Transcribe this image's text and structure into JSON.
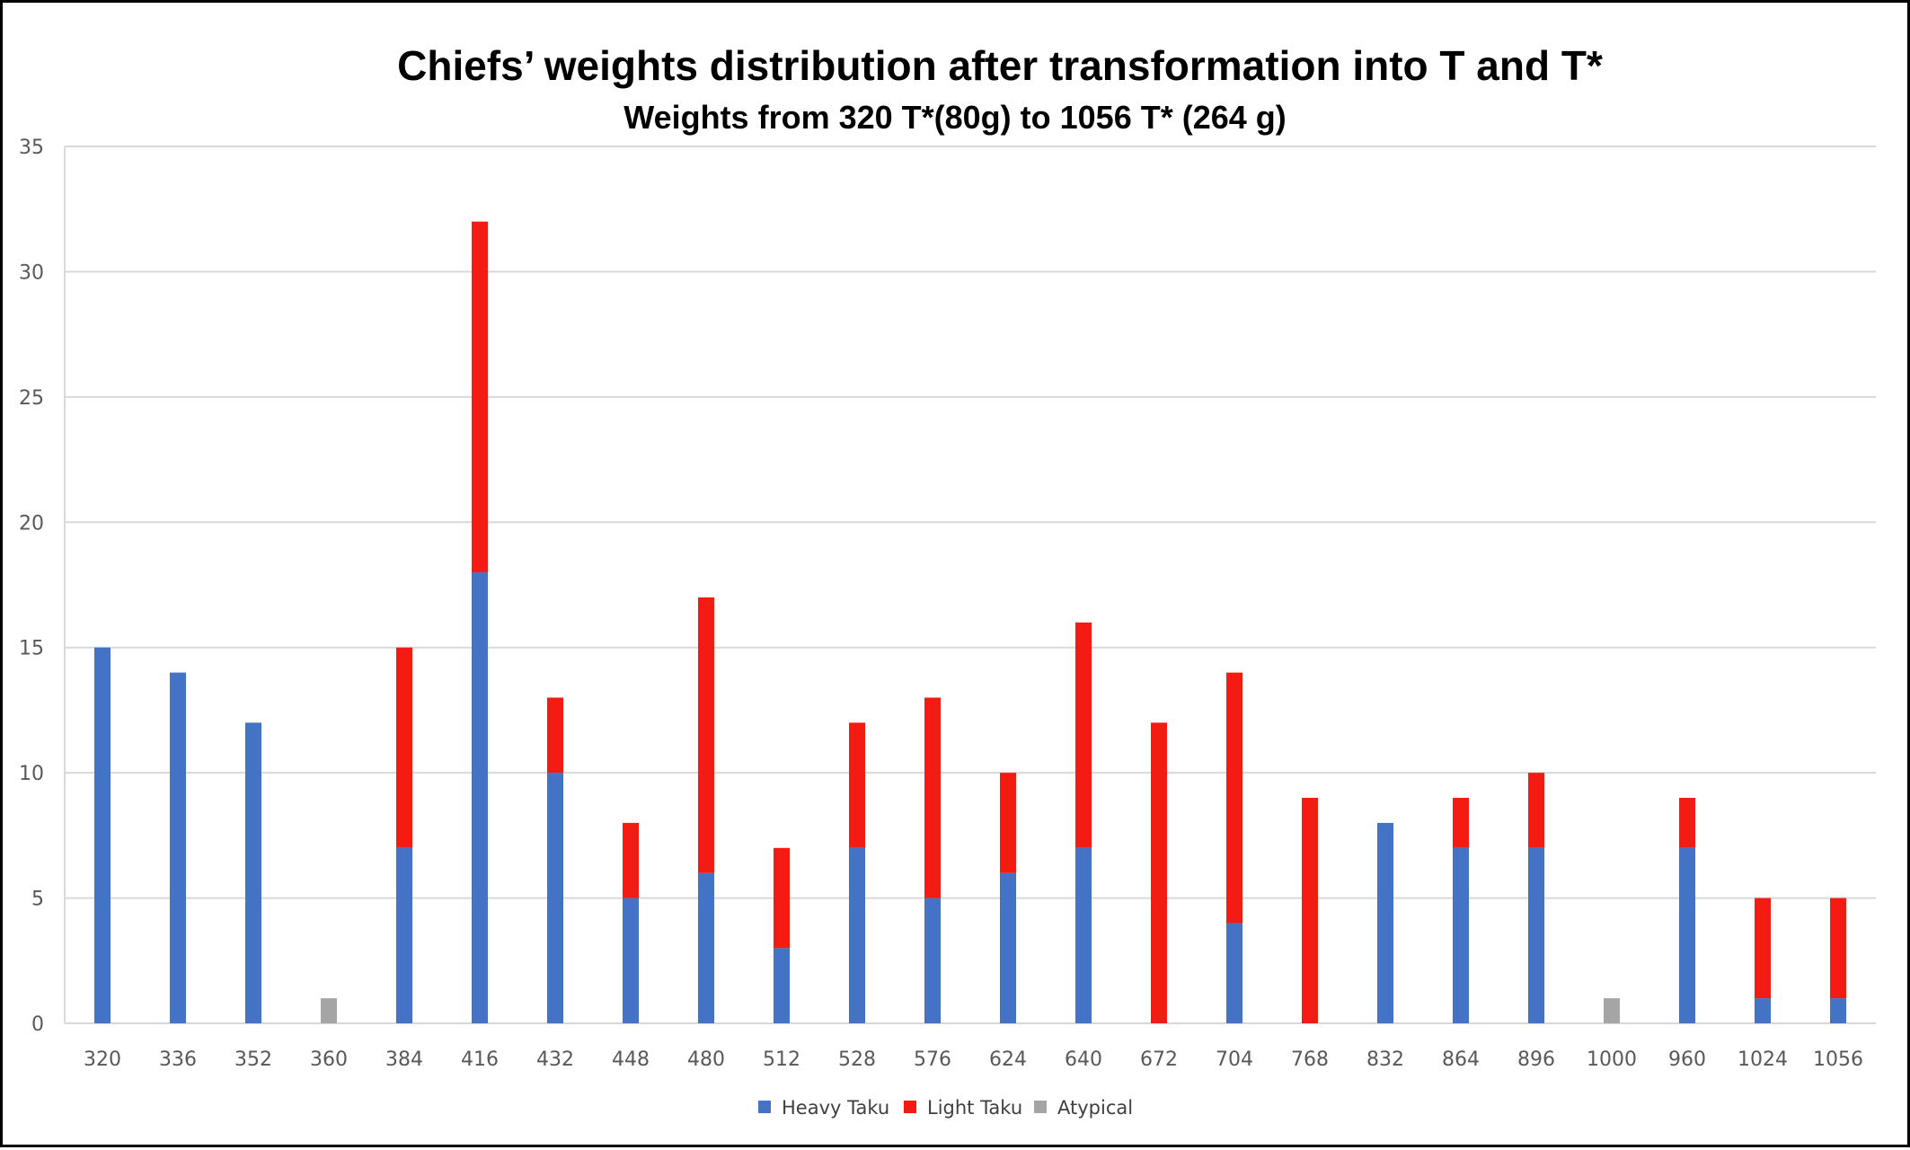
{
  "chart_data": {
    "type": "bar",
    "stacked": true,
    "title": "Chiefs’ weights distribution after transformation into T and T*",
    "subtitle": "Weights from 320 T*(80g) to 1056 T* (264 g)",
    "xlabel": "",
    "ylabel": "",
    "ylim": [
      0,
      35
    ],
    "yticks": [
      0,
      5,
      10,
      15,
      20,
      25,
      30,
      35
    ],
    "grid": true,
    "legend_position": "bottom",
    "categories": [
      "320",
      "336",
      "352",
      "360",
      "384",
      "416",
      "432",
      "448",
      "480",
      "512",
      "528",
      "576",
      "624",
      "640",
      "672",
      "704",
      "768",
      "832",
      "864",
      "896",
      "1000",
      "960",
      "1024",
      "1056"
    ],
    "series": [
      {
        "name": "Heavy Taku",
        "color": "#4472C4",
        "values": [
          15,
          14,
          12,
          0,
          7,
          18,
          10,
          5,
          6,
          3,
          7,
          5,
          6,
          7,
          0,
          4,
          0,
          8,
          7,
          7,
          0,
          7,
          1,
          1
        ]
      },
      {
        "name": "Light Taku",
        "color": "#F41B12",
        "values": [
          0,
          0,
          0,
          0,
          8,
          14,
          3,
          3,
          11,
          4,
          5,
          8,
          4,
          9,
          12,
          10,
          9,
          0,
          2,
          3,
          0,
          2,
          4,
          4
        ]
      },
      {
        "name": "Atypical",
        "color": "#A5A5A5",
        "values": [
          0,
          0,
          0,
          1,
          0,
          0,
          0,
          0,
          0,
          0,
          0,
          0,
          0,
          0,
          0,
          0,
          0,
          0,
          0,
          0,
          1,
          0,
          0,
          0
        ]
      }
    ]
  },
  "colors": {
    "grid": "#D9D9D9",
    "axis_text": "#595959",
    "border": "#000000"
  }
}
